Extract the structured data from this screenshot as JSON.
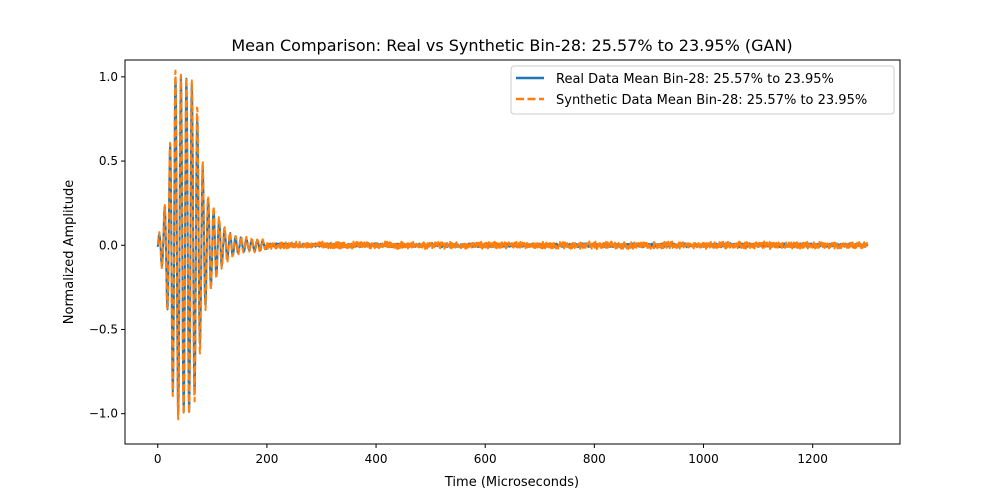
{
  "chart_data": {
    "type": "line",
    "title": "Mean Comparison: Real vs Synthetic Bin-28: 25.57% to 23.95% (GAN)",
    "xlabel": "Time (Microseconds)",
    "ylabel": "Normalized Amplitude",
    "xlim": [
      -60,
      1360
    ],
    "ylim": [
      -1.18,
      1.1
    ],
    "xticks": [
      0,
      200,
      400,
      600,
      800,
      1000,
      1200
    ],
    "yticks": [
      -1.0,
      -0.5,
      0.0,
      0.5,
      1.0
    ],
    "xtick_labels": [
      "0",
      "200",
      "400",
      "600",
      "800",
      "1000",
      "1200"
    ],
    "ytick_labels": [
      "−1.0",
      "−0.5",
      "0.0",
      "0.5",
      "1.0"
    ],
    "legend_position": "top-right",
    "grid": false,
    "series": [
      {
        "name": "Real Data Mean Bin-28: 25.57% to 23.95%",
        "color": "#1f77b4",
        "style": "solid",
        "envelope": [
          [
            0,
            0.03
          ],
          [
            10,
            0.15
          ],
          [
            20,
            0.45
          ],
          [
            30,
            1.0
          ],
          [
            40,
            1.0
          ],
          [
            50,
            0.98
          ],
          [
            60,
            1.0
          ],
          [
            70,
            0.85
          ],
          [
            80,
            0.5
          ],
          [
            90,
            0.3
          ],
          [
            100,
            0.22
          ],
          [
            120,
            0.1
          ],
          [
            140,
            0.05
          ],
          [
            170,
            0.03
          ],
          [
            200,
            0.02
          ],
          [
            1300,
            0.02
          ]
        ],
        "cycle_us": 10,
        "noise_amplitude": 0.01,
        "x_end": 1300
      },
      {
        "name": "Synthetic Data Mean Bin-28: 25.57% to 23.95%",
        "color": "#ff7f0e",
        "style": "dashed",
        "envelope": [
          [
            0,
            0.04
          ],
          [
            10,
            0.16
          ],
          [
            20,
            0.46
          ],
          [
            30,
            1.05
          ],
          [
            40,
            1.02
          ],
          [
            50,
            0.99
          ],
          [
            60,
            1.0
          ],
          [
            70,
            0.9
          ],
          [
            80,
            0.55
          ],
          [
            90,
            0.32
          ],
          [
            100,
            0.24
          ],
          [
            120,
            0.12
          ],
          [
            140,
            0.06
          ],
          [
            170,
            0.035
          ],
          [
            200,
            0.025
          ],
          [
            1300,
            0.02
          ]
        ],
        "cycle_us": 10,
        "noise_amplitude": 0.018,
        "x_end": 1300
      }
    ]
  }
}
